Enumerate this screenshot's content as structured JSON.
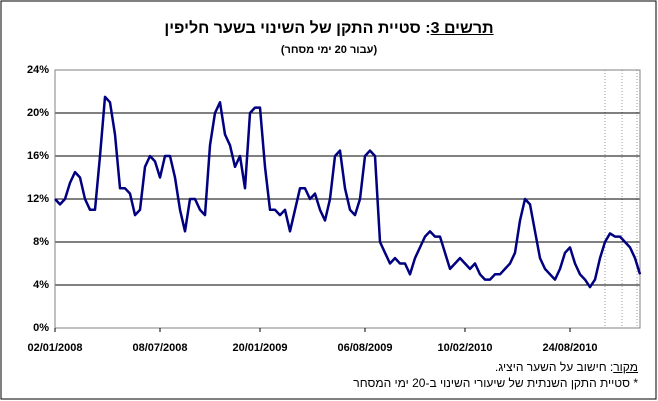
{
  "chart_data": {
    "type": "line",
    "title_prefix": "תרשים 3",
    "title": ": סטיית התקן של השינוי בשער חליפין",
    "subtitle": "(עבור 20 ימי מסחר)",
    "source_label": "מקור",
    "source_text": ": חישוב על השער היציג.",
    "footnote": "* סטיית התקן השנתית של שיעורי השינוי ב-20 ימי המסחר",
    "categories": [
      "02/01/2008",
      null,
      null,
      null,
      null,
      null,
      null,
      null,
      null,
      null,
      null,
      null,
      null,
      null,
      null,
      null,
      null,
      null,
      null,
      null,
      null,
      "08/07/2008",
      null,
      null,
      null,
      null,
      null,
      null,
      null,
      null,
      null,
      null,
      null,
      null,
      null,
      null,
      null,
      null,
      null,
      null,
      null,
      "20/01/2009",
      null,
      null,
      null,
      null,
      null,
      null,
      null,
      null,
      null,
      null,
      null,
      null,
      null,
      null,
      null,
      null,
      null,
      null,
      null,
      null,
      "06/08/2009",
      null,
      null,
      null,
      null,
      null,
      null,
      null,
      null,
      null,
      null,
      null,
      null,
      null,
      null,
      null,
      null,
      null,
      null,
      null,
      "10/02/2010",
      null,
      null,
      null,
      null,
      null,
      null,
      null,
      null,
      null,
      null,
      null,
      null,
      null,
      null,
      null,
      null,
      null,
      null,
      null,
      null,
      "24/08/2010",
      null,
      null,
      null,
      null,
      null,
      null,
      null,
      null,
      null,
      null,
      null,
      null,
      null,
      null
    ],
    "series": [
      {
        "name": "סטיית תקן",
        "color": "#000080",
        "values": [
          12,
          11.5,
          12,
          13.5,
          14.5,
          14,
          12,
          11,
          11,
          16,
          21.5,
          21,
          18,
          13,
          13,
          12.5,
          10.5,
          11,
          15,
          16,
          15.5,
          14,
          16,
          16,
          14,
          11,
          9,
          12,
          12,
          11,
          10.5,
          17,
          20,
          21,
          18,
          17,
          15,
          16,
          13,
          20,
          20.5,
          20.5,
          15,
          11,
          11,
          10.5,
          11,
          9,
          11,
          13,
          13,
          12,
          12.5,
          11,
          10,
          12,
          16,
          16.5,
          13,
          11,
          10.5,
          12,
          16,
          16.5,
          16,
          8,
          7,
          6,
          6.5,
          6,
          6,
          5,
          6.5,
          7.5,
          8.5,
          9,
          8.5,
          8.5,
          7,
          5.5,
          6,
          6.5,
          6,
          5.5,
          6,
          5,
          4.5,
          4.5,
          5,
          5,
          5.5,
          6,
          7,
          10,
          12,
          11.5,
          9,
          6.5,
          5.5,
          5,
          4.5,
          5.5,
          7,
          7.5,
          6,
          5,
          4.5,
          3.8,
          4.5,
          6.5,
          8,
          8.8,
          8.5,
          8.5,
          8,
          7.5,
          6.5,
          5
        ]
      }
    ],
    "ylim": [
      0,
      24
    ],
    "yticks": [
      {
        "value": 0,
        "label": "0%"
      },
      {
        "value": 4,
        "label": "4%"
      },
      {
        "value": 8,
        "label": "8%"
      },
      {
        "value": 12,
        "label": "12%"
      },
      {
        "value": 16,
        "label": "16%"
      },
      {
        "value": 20,
        "label": "20%"
      },
      {
        "value": 24,
        "label": "24%"
      }
    ],
    "grid": true
  }
}
